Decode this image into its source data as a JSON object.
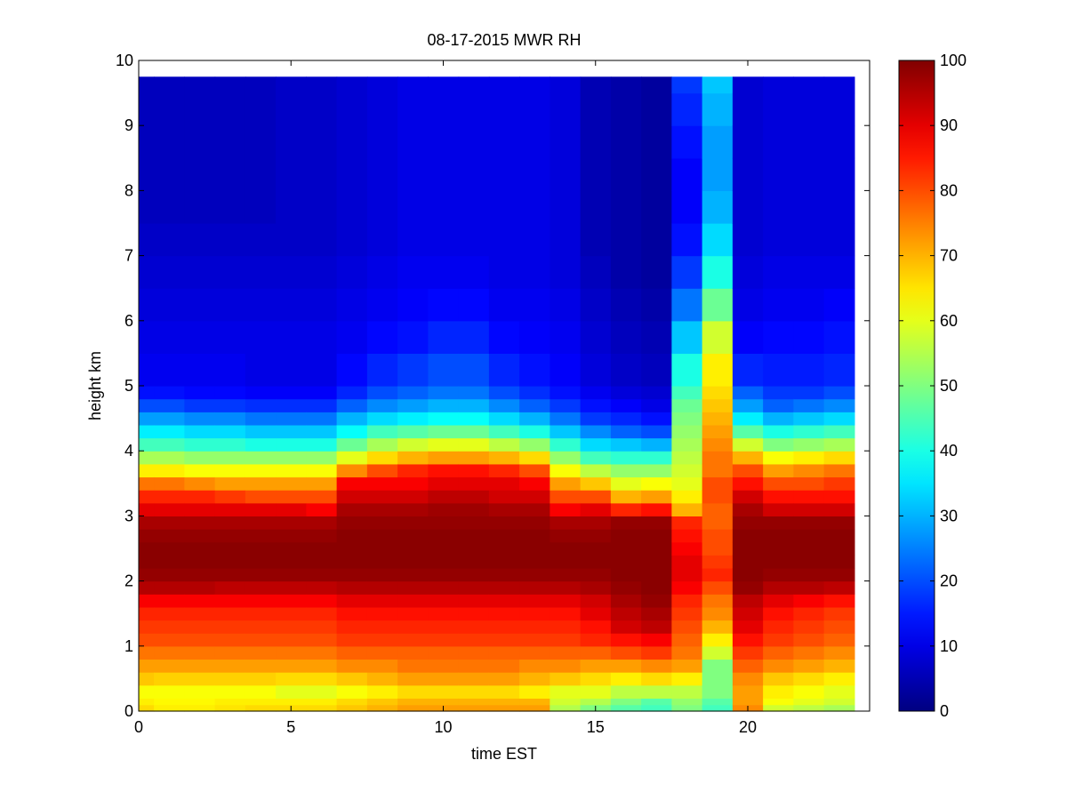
{
  "figure": {
    "title": "08-17-2015 MWR RH",
    "xlabel": "time EST",
    "ylabel": "height km"
  },
  "chart_data": {
    "type": "heatmap",
    "title": "08-17-2015 MWR RH",
    "xlabel": "time EST",
    "ylabel": "height km",
    "xlim": [
      0,
      24
    ],
    "ylim": [
      0,
      10
    ],
    "xticks": [
      0,
      5,
      10,
      15,
      20
    ],
    "yticks": [
      0,
      1,
      2,
      3,
      4,
      5,
      6,
      7,
      8,
      9,
      10
    ],
    "grid": false,
    "colormap": "jet",
    "colorbar": {
      "range": [
        0,
        100
      ],
      "ticks": [
        0,
        10,
        20,
        30,
        40,
        50,
        60,
        70,
        80,
        90,
        100
      ]
    },
    "time_bins": [
      0.0,
      0.5,
      1.5,
      2.5,
      3.5,
      4.5,
      5.5,
      6.5,
      7.5,
      8.5,
      9.5,
      10.5,
      11.5,
      12.5,
      13.5,
      14.5,
      15.5,
      16.5,
      17.5,
      18.5,
      19.5,
      20.5,
      21.5,
      22.5,
      23.5
    ],
    "height_profile_km": [
      0,
      0.1,
      0.2,
      0.4,
      0.6,
      0.8,
      1.0,
      1.2,
      1.4,
      1.6,
      1.8,
      2.0,
      2.2,
      2.4,
      2.6,
      2.8,
      3.0,
      3.2,
      3.4,
      3.6,
      3.8,
      4.0,
      4.2,
      4.4,
      4.6,
      4.8,
      5.0,
      5.5,
      6.0,
      6.5,
      7.0,
      7.5,
      8.0,
      8.5,
      9.0,
      9.5,
      9.75
    ],
    "rh_percent_by_time": [
      [
        66,
        64,
        62,
        68,
        72,
        76,
        80,
        82,
        84,
        88,
        95,
        98,
        99,
        99,
        98,
        96,
        90,
        84,
        76,
        64,
        54,
        44,
        36,
        28,
        20,
        14,
        11,
        10,
        9,
        8,
        7,
        6,
        6,
        6,
        6,
        6
      ],
      [
        64,
        63,
        62,
        67,
        72,
        76,
        80,
        82,
        84,
        88,
        95,
        98,
        99,
        99,
        98,
        96,
        90,
        84,
        76,
        64,
        54,
        44,
        36,
        28,
        20,
        14,
        11,
        10,
        9,
        8,
        7,
        6,
        6,
        6,
        6,
        6
      ],
      [
        64,
        63,
        62,
        67,
        72,
        76,
        80,
        82,
        84,
        88,
        95,
        98,
        99,
        99,
        98,
        96,
        90,
        84,
        74,
        62,
        52,
        42,
        34,
        26,
        18,
        13,
        11,
        10,
        9,
        8,
        7,
        6,
        6,
        6,
        6,
        6
      ],
      [
        65,
        64,
        62,
        67,
        72,
        76,
        80,
        82,
        84,
        88,
        94,
        98,
        99,
        99,
        98,
        96,
        90,
        82,
        72,
        62,
        52,
        42,
        34,
        26,
        18,
        13,
        11,
        10,
        9,
        8,
        7,
        6,
        6,
        6,
        6,
        6
      ],
      [
        66,
        64,
        62,
        67,
        72,
        76,
        80,
        82,
        84,
        88,
        94,
        98,
        99,
        99,
        98,
        96,
        90,
        80,
        72,
        62,
        52,
        40,
        32,
        24,
        17,
        12,
        10,
        10,
        9,
        8,
        7,
        6,
        6,
        6,
        6,
        6
      ],
      [
        66,
        64,
        60,
        66,
        72,
        76,
        80,
        82,
        84,
        88,
        94,
        98,
        99,
        99,
        98,
        96,
        90,
        80,
        72,
        62,
        52,
        40,
        32,
        24,
        17,
        12,
        10,
        10,
        9,
        8,
        7,
        7,
        7,
        7,
        7,
        7
      ],
      [
        66,
        64,
        60,
        66,
        72,
        76,
        80,
        82,
        84,
        88,
        94,
        98,
        99,
        99,
        98,
        96,
        88,
        80,
        72,
        62,
        52,
        40,
        32,
        24,
        17,
        12,
        10,
        10,
        9,
        8,
        7,
        7,
        7,
        7,
        7,
        7
      ],
      [
        68,
        66,
        62,
        68,
        74,
        78,
        82,
        84,
        86,
        90,
        95,
        98,
        99,
        99,
        99,
        98,
        96,
        92,
        88,
        74,
        60,
        48,
        38,
        30,
        22,
        16,
        13,
        11,
        10,
        9,
        8,
        8,
        8,
        8,
        8,
        8
      ],
      [
        70,
        68,
        64,
        70,
        74,
        78,
        82,
        84,
        86,
        90,
        95,
        98,
        99,
        99,
        99,
        98,
        96,
        92,
        88,
        80,
        66,
        54,
        44,
        34,
        26,
        20,
        16,
        13,
        11,
        10,
        9,
        9,
        9,
        9,
        9,
        9
      ],
      [
        72,
        70,
        66,
        72,
        76,
        78,
        82,
        84,
        86,
        90,
        95,
        98,
        99,
        99,
        99,
        98,
        96,
        92,
        88,
        84,
        70,
        58,
        46,
        36,
        28,
        22,
        18,
        14,
        12,
        11,
        10,
        10,
        10,
        10,
        10,
        10
      ],
      [
        72,
        70,
        66,
        72,
        76,
        78,
        82,
        84,
        86,
        90,
        95,
        98,
        99,
        99,
        99,
        98,
        97,
        94,
        90,
        86,
        72,
        60,
        48,
        38,
        30,
        24,
        20,
        16,
        13,
        11,
        10,
        10,
        10,
        10,
        10,
        10
      ],
      [
        72,
        70,
        66,
        72,
        76,
        78,
        82,
        84,
        86,
        90,
        95,
        98,
        99,
        99,
        99,
        98,
        97,
        94,
        90,
        86,
        72,
        60,
        48,
        38,
        30,
        24,
        20,
        16,
        13,
        11,
        10,
        10,
        10,
        10,
        10,
        10
      ],
      [
        72,
        70,
        66,
        72,
        76,
        78,
        82,
        84,
        86,
        90,
        95,
        98,
        99,
        99,
        99,
        98,
        96,
        92,
        90,
        84,
        70,
        56,
        44,
        34,
        26,
        20,
        16,
        13,
        11,
        10,
        10,
        10,
        10,
        10,
        10,
        10
      ],
      [
        72,
        70,
        64,
        70,
        74,
        78,
        82,
        84,
        86,
        90,
        95,
        98,
        99,
        99,
        99,
        98,
        96,
        92,
        88,
        80,
        66,
        52,
        40,
        30,
        22,
        17,
        14,
        12,
        11,
        10,
        10,
        10,
        10,
        10,
        10,
        10
      ],
      [
        55,
        58,
        60,
        68,
        74,
        78,
        82,
        84,
        86,
        90,
        95,
        98,
        99,
        99,
        98,
        96,
        88,
        80,
        72,
        62,
        52,
        42,
        32,
        24,
        18,
        14,
        12,
        11,
        10,
        9,
        9,
        9,
        9,
        9,
        9,
        9
      ],
      [
        50,
        55,
        60,
        66,
        72,
        78,
        84,
        86,
        90,
        92,
        96,
        98,
        99,
        99,
        98,
        96,
        90,
        80,
        68,
        56,
        44,
        34,
        26,
        18,
        14,
        11,
        9,
        8,
        7,
        6,
        5,
        5,
        5,
        5,
        5,
        5
      ],
      [
        46,
        50,
        56,
        64,
        72,
        80,
        86,
        92,
        94,
        96,
        98,
        99,
        99,
        99,
        99,
        98,
        84,
        70,
        60,
        52,
        42,
        32,
        22,
        16,
        12,
        9,
        7,
        6,
        5,
        4,
        4,
        4,
        4,
        4,
        4,
        4
      ],
      [
        44,
        46,
        56,
        66,
        74,
        82,
        88,
        94,
        96,
        98,
        99,
        99,
        99,
        99,
        99,
        98,
        86,
        72,
        62,
        52,
        42,
        30,
        20,
        14,
        10,
        8,
        6,
        5,
        4,
        3,
        3,
        3,
        3,
        3,
        3,
        3
      ],
      [
        50,
        52,
        56,
        64,
        72,
        76,
        78,
        80,
        82,
        84,
        88,
        90,
        90,
        88,
        86,
        84,
        70,
        64,
        60,
        58,
        56,
        54,
        52,
        50,
        48,
        44,
        40,
        32,
        24,
        18,
        14,
        12,
        12,
        14,
        16,
        18
      ],
      [
        44,
        46,
        50,
        50,
        50,
        58,
        64,
        70,
        74,
        76,
        80,
        84,
        82,
        80,
        80,
        78,
        78,
        80,
        80,
        76,
        76,
        74,
        72,
        70,
        68,
        66,
        64,
        58,
        48,
        40,
        34,
        30,
        28,
        28,
        30,
        32
      ],
      [
        74,
        72,
        72,
        74,
        78,
        82,
        86,
        90,
        92,
        94,
        98,
        99,
        99,
        99,
        99,
        98,
        96,
        92,
        86,
        80,
        70,
        58,
        46,
        36,
        28,
        22,
        16,
        12,
        10,
        9,
        8,
        8,
        8,
        8,
        8,
        8
      ],
      [
        58,
        62,
        64,
        68,
        74,
        78,
        82,
        84,
        86,
        90,
        95,
        98,
        99,
        99,
        99,
        98,
        92,
        86,
        80,
        72,
        62,
        50,
        40,
        30,
        22,
        18,
        15,
        13,
        11,
        10,
        9,
        9,
        9,
        9,
        9,
        9
      ],
      [
        56,
        60,
        62,
        66,
        72,
        76,
        80,
        82,
        84,
        88,
        95,
        98,
        99,
        99,
        99,
        98,
        92,
        86,
        80,
        74,
        64,
        52,
        42,
        32,
        24,
        18,
        15,
        13,
        11,
        10,
        9,
        9,
        9,
        9,
        9,
        9
      ],
      [
        54,
        58,
        60,
        64,
        70,
        74,
        78,
        80,
        82,
        86,
        94,
        98,
        99,
        99,
        99,
        98,
        92,
        86,
        82,
        76,
        66,
        54,
        44,
        34,
        26,
        20,
        16,
        14,
        12,
        10,
        9,
        9,
        9,
        9,
        9,
        9
      ]
    ]
  }
}
